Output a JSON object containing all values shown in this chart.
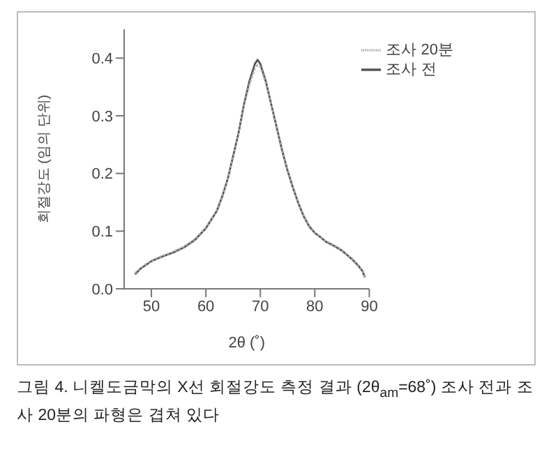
{
  "chart_data": {
    "type": "line",
    "xlabel": "2θ (˚)",
    "ylabel": "회절강도 (임의 단위)",
    "annotations": [
      "그림 4. 니켈도금막의 X선 회절강도 측정 결과 (2θ$_{am}$=68˚) 조사 전과 조사 20분의 파형은 겹쳐 있다"
    ],
    "xlim": [
      45,
      90
    ],
    "xticks": [
      50,
      60,
      70,
      80,
      90
    ],
    "ylim": [
      0,
      0.45
    ],
    "yticks": [
      {
        "value": 0,
        "label": "0.0"
      },
      0.1,
      0.2,
      0.3,
      0.4
    ],
    "grid": false,
    "legend": "top right",
    "marker": "none",
    "series": [
      {
        "name": "조사 전",
        "color": "#555555",
        "line_style": "solid",
        "x": [
          47,
          48,
          50,
          52,
          54,
          56,
          58,
          60,
          62,
          63,
          64,
          65,
          66,
          67,
          68,
          69,
          69.5,
          70,
          71,
          72,
          73,
          74,
          75,
          76,
          77,
          78,
          79,
          80,
          81,
          82,
          83,
          84,
          85,
          86,
          87,
          88,
          88.8,
          89.2
        ],
        "values": [
          0.025,
          0.035,
          0.048,
          0.056,
          0.063,
          0.072,
          0.085,
          0.105,
          0.135,
          0.16,
          0.19,
          0.23,
          0.27,
          0.32,
          0.36,
          0.39,
          0.397,
          0.39,
          0.36,
          0.32,
          0.28,
          0.24,
          0.205,
          0.175,
          0.148,
          0.125,
          0.108,
          0.097,
          0.09,
          0.082,
          0.077,
          0.072,
          0.066,
          0.058,
          0.05,
          0.04,
          0.03,
          0.02
        ]
      },
      {
        "name": "조사 20분",
        "color": "#a8a8a8",
        "line_style": "dotted",
        "x": [
          47,
          48,
          50,
          52,
          54,
          56,
          58,
          60,
          62,
          63,
          64,
          65,
          66,
          67,
          68,
          69,
          69.5,
          70,
          71,
          72,
          73,
          74,
          75,
          76,
          77,
          78,
          79,
          80,
          81,
          82,
          83,
          84,
          85,
          86,
          87,
          88,
          88.8,
          89.2
        ],
        "values": [
          0.027,
          0.036,
          0.049,
          0.057,
          0.064,
          0.073,
          0.086,
          0.106,
          0.136,
          0.161,
          0.19,
          0.229,
          0.27,
          0.318,
          0.355,
          0.382,
          0.388,
          0.385,
          0.358,
          0.32,
          0.281,
          0.241,
          0.206,
          0.176,
          0.149,
          0.126,
          0.109,
          0.098,
          0.09,
          0.083,
          0.078,
          0.073,
          0.067,
          0.059,
          0.051,
          0.041,
          0.031,
          0.021
        ]
      }
    ]
  }
}
